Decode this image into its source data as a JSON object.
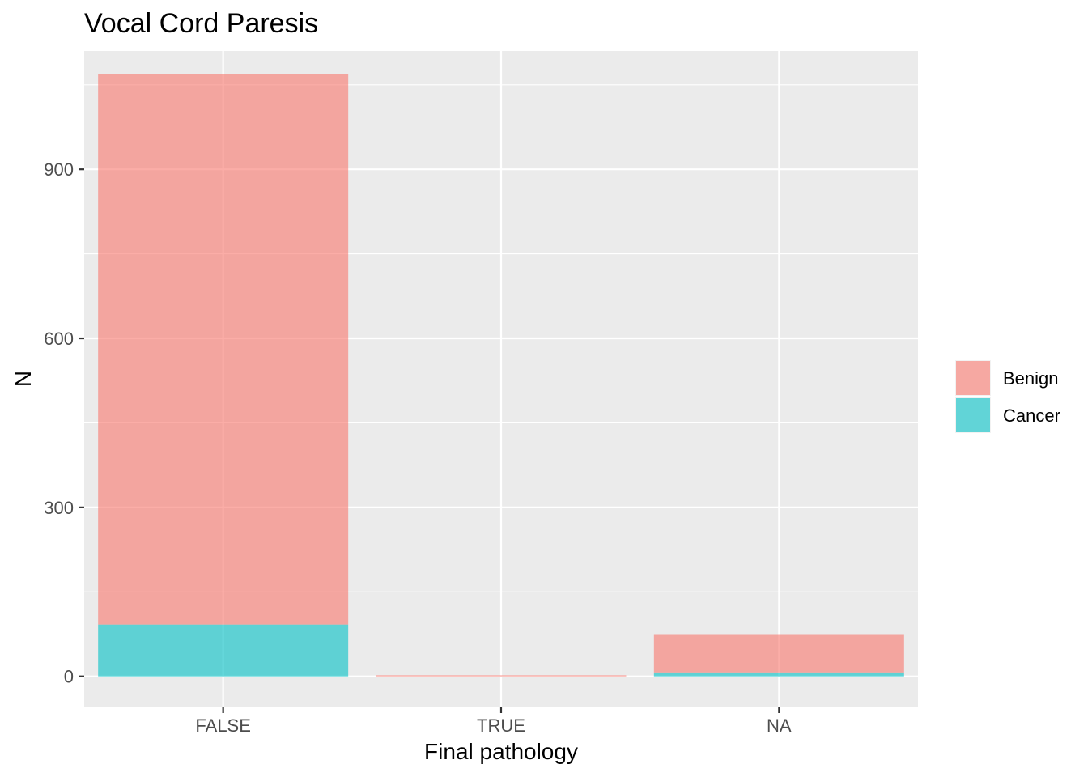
{
  "chart_data": {
    "type": "bar",
    "stacked": true,
    "title": "Vocal Cord Paresis",
    "xlabel": "Final pathology",
    "ylabel": "N",
    "categories": [
      "FALSE",
      "TRUE",
      "NA"
    ],
    "series": [
      {
        "name": "Benign",
        "color": "#F8766D",
        "values": [
          977,
          2,
          68
        ]
      },
      {
        "name": "Cancer",
        "color": "#00BFC4",
        "values": [
          92,
          0,
          7
        ]
      }
    ],
    "ylim": [
      -55,
      1110
    ],
    "yticks": [
      0,
      300,
      600,
      900
    ],
    "grid": true,
    "legend_position": "right",
    "panel_background": "#EBEBEB"
  }
}
